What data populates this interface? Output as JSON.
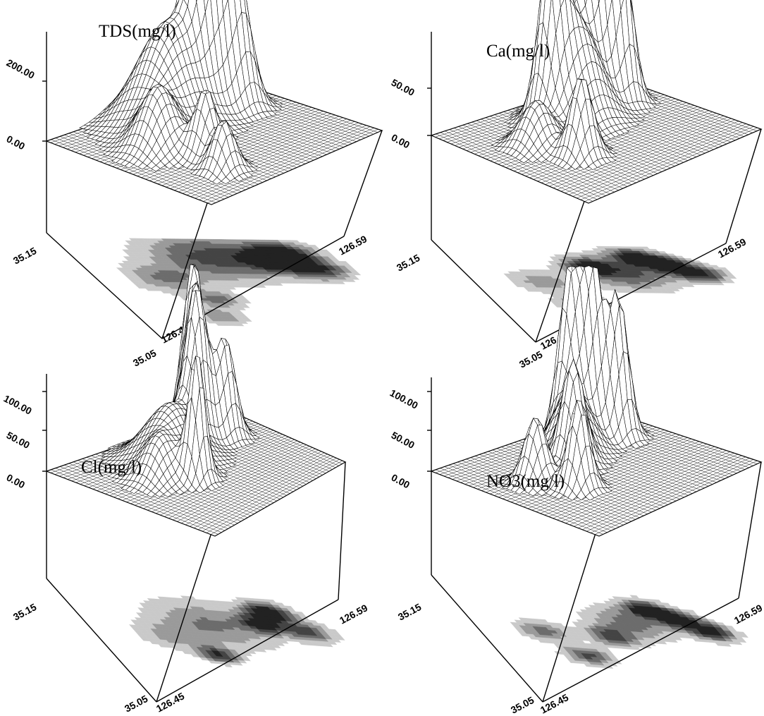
{
  "chart_data": [
    {
      "type": "surface",
      "title": "TDS(mg/l)",
      "z_ticks": [
        "0.00",
        "200.00"
      ],
      "x_ticks": [
        "35.05",
        "35.15"
      ],
      "y_ticks": [
        "126.45",
        "126.59"
      ],
      "z_range": [
        0,
        200
      ],
      "peaks": [
        {
          "x": 0.72,
          "y": 0.18,
          "z": 1.0,
          "w": 0.07
        },
        {
          "x": 0.66,
          "y": 0.25,
          "z": 0.85,
          "w": 0.06
        },
        {
          "x": 0.78,
          "y": 0.32,
          "z": 0.75,
          "w": 0.06
        },
        {
          "x": 0.48,
          "y": 0.22,
          "z": 0.6,
          "w": 0.13
        },
        {
          "x": 0.24,
          "y": 0.42,
          "z": 0.35,
          "w": 0.08
        },
        {
          "x": 0.33,
          "y": 0.62,
          "z": 0.4,
          "w": 0.05
        },
        {
          "x": 0.28,
          "y": 0.78,
          "z": 0.3,
          "w": 0.05
        }
      ]
    },
    {
      "type": "surface",
      "title": "Ca(mg/l)",
      "z_ticks": [
        "0.00",
        "50.00"
      ],
      "x_ticks": [
        "35.05",
        "35.15"
      ],
      "y_ticks": [
        "126.45",
        "126.59"
      ],
      "z_range": [
        0,
        50
      ],
      "peaks": [
        {
          "x": 0.64,
          "y": 0.15,
          "z": 0.95,
          "w": 0.05
        },
        {
          "x": 0.72,
          "y": 0.22,
          "z": 1.0,
          "w": 0.05
        },
        {
          "x": 0.8,
          "y": 0.3,
          "z": 0.85,
          "w": 0.05
        },
        {
          "x": 0.45,
          "y": 0.25,
          "z": 0.8,
          "w": 0.05
        },
        {
          "x": 0.55,
          "y": 0.3,
          "z": 0.55,
          "w": 0.1
        },
        {
          "x": 0.3,
          "y": 0.62,
          "z": 0.45,
          "w": 0.05
        },
        {
          "x": 0.24,
          "y": 0.4,
          "z": 0.25,
          "w": 0.07
        }
      ]
    },
    {
      "type": "surface",
      "title": "Cl(mg/l)",
      "z_ticks": [
        "0.00",
        "50.00",
        "100.00"
      ],
      "x_ticks": [
        "35.05",
        "35.15"
      ],
      "y_ticks": [
        "126.45",
        "126.59"
      ],
      "z_range": [
        0,
        100
      ],
      "peaks": [
        {
          "x": 0.7,
          "y": 0.16,
          "z": 1.0,
          "w": 0.05
        },
        {
          "x": 0.64,
          "y": 0.26,
          "z": 0.8,
          "w": 0.05
        },
        {
          "x": 0.78,
          "y": 0.3,
          "z": 0.6,
          "w": 0.05
        },
        {
          "x": 0.38,
          "y": 0.55,
          "z": 0.75,
          "w": 0.04
        },
        {
          "x": 0.45,
          "y": 0.3,
          "z": 0.35,
          "w": 0.12
        },
        {
          "x": 0.26,
          "y": 0.42,
          "z": 0.2,
          "w": 0.07
        }
      ]
    },
    {
      "type": "surface",
      "title": "NO3(mg/l)",
      "z_ticks": [
        "0.00",
        "50.00",
        "100.00"
      ],
      "x_ticks": [
        "35.05",
        "35.15"
      ],
      "y_ticks": [
        "126.45",
        "126.59"
      ],
      "z_range": [
        0,
        100
      ],
      "peaks": [
        {
          "x": 0.64,
          "y": 0.16,
          "z": 0.95,
          "w": 0.045
        },
        {
          "x": 0.72,
          "y": 0.22,
          "z": 1.0,
          "w": 0.045
        },
        {
          "x": 0.8,
          "y": 0.3,
          "z": 0.85,
          "w": 0.045
        },
        {
          "x": 0.44,
          "y": 0.4,
          "z": 0.6,
          "w": 0.05
        },
        {
          "x": 0.3,
          "y": 0.58,
          "z": 0.55,
          "w": 0.045
        },
        {
          "x": 0.22,
          "y": 0.4,
          "z": 0.4,
          "w": 0.05
        },
        {
          "x": 0.55,
          "y": 0.28,
          "z": 0.4,
          "w": 0.08
        }
      ]
    }
  ]
}
